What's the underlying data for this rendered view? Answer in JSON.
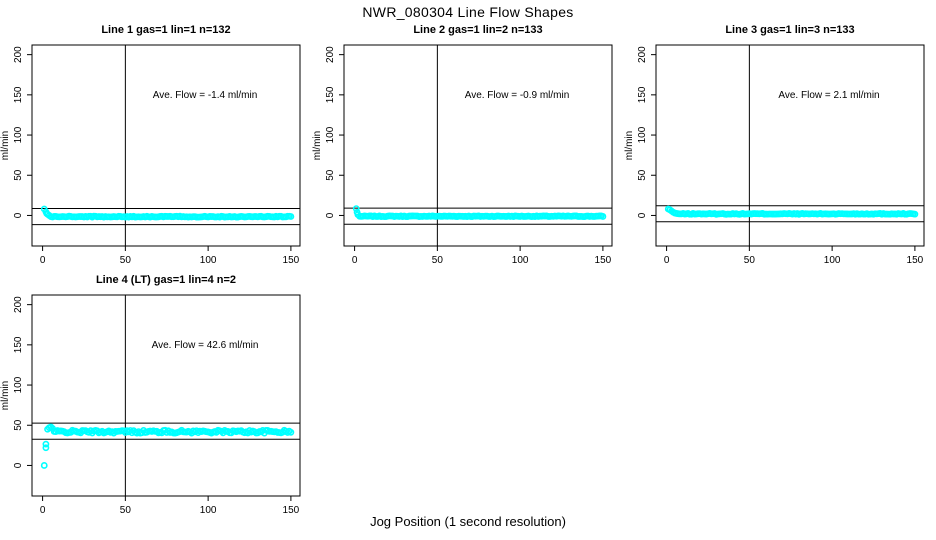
{
  "page": {
    "main_title": "NWR_080304  Line Flow Shapes",
    "x_caption": "Jog Position (1 second resolution)"
  },
  "chart_data": {
    "type": "scatter",
    "title": "NWR_080304  Line Flow Shapes",
    "xlabel": "Jog Position (1 second resolution)",
    "ylabel": "ml/min",
    "x_ticks": [
      0,
      50,
      100,
      150
    ],
    "y_ticks": [
      0,
      50,
      100,
      150,
      200
    ],
    "xlim": [
      -6.4,
      155.5
    ],
    "ylim": [
      -38,
      212
    ],
    "grid": false,
    "marker": "open-circle",
    "marker_color": "#00FFFF",
    "line_color": "#000000",
    "vline_x": 50,
    "panels": [
      {
        "title": "Line 1 gas=1 lin=1 n=132",
        "ave_flow": -1.4,
        "ave_flow_label": "Ave. Flow =  -1.4  ml/min",
        "ref_lines": [
          8.6,
          -11.4
        ],
        "anchors": [
          [
            1,
            8
          ],
          [
            2,
            4.5
          ],
          [
            2.5,
            2.5
          ],
          [
            3,
            1.5
          ],
          [
            4,
            0
          ]
        ],
        "flat": {
          "from": 5,
          "to": 150,
          "step": 1,
          "level": -1.5,
          "noise": 0.6
        },
        "seed": 3
      },
      {
        "title": "Line 2 gas=1 lin=2 n=133",
        "ave_flow": -0.9,
        "ave_flow_label": "Ave. Flow =  -0.9  ml/min",
        "ref_lines": [
          9.1,
          -10.9
        ],
        "anchors": [
          [
            1,
            8.5
          ],
          [
            1.5,
            4
          ],
          [
            2,
            1
          ]
        ],
        "flat": {
          "from": 3,
          "to": 150,
          "step": 1,
          "level": -1.0,
          "noise": 0.5
        },
        "seed": 7
      },
      {
        "title": "Line 3 gas=1 lin=3 n=133",
        "ave_flow": 2.1,
        "ave_flow_label": "Ave. Flow =  2.1  ml/min",
        "ref_lines": [
          12.1,
          -7.9
        ],
        "anchors": [
          [
            1,
            8
          ],
          [
            2,
            7
          ],
          [
            3,
            5.5
          ],
          [
            4,
            4
          ],
          [
            5,
            3
          ],
          [
            6,
            2.5
          ]
        ],
        "flat": {
          "from": 7,
          "to": 150,
          "step": 1,
          "level": 2.0,
          "noise": 0.6
        },
        "seed": 13
      },
      {
        "title": "Line 4 (LT) gas=1 lin=4 n=2",
        "ave_flow": 42.6,
        "ave_flow_label": "Ave. Flow =  42.6  ml/min",
        "ref_lines": [
          52.6,
          32.6
        ],
        "anchors": [
          [
            1,
            0
          ],
          [
            2,
            22
          ],
          [
            2,
            26.5
          ],
          [
            3,
            45
          ],
          [
            4,
            47
          ],
          [
            5,
            48
          ],
          [
            6,
            46
          ]
        ],
        "flat": {
          "from": 7,
          "to": 150,
          "step": 1,
          "level": 42.0,
          "noise": 1.8
        },
        "seed": 42
      }
    ]
  }
}
